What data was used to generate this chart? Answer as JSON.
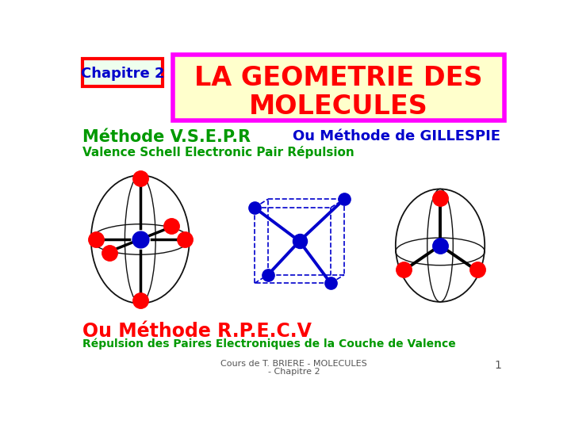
{
  "bg_color": "#ffffff",
  "chapitre_text": "Chapitre 2",
  "chapitre_bg": "#eeffee",
  "chapitre_border": "#ff0000",
  "chapitre_text_color": "#0000cc",
  "title_text_line1": "LA GEOMETRIE DES",
  "title_text_line2": "MOLECULES",
  "title_bg": "#ffffcc",
  "title_border": "#ff00ff",
  "title_text_color": "#ff0000",
  "methode_text": "Méthode V.S.E.P.R",
  "methode_color": "#009900",
  "gillespie_text": "Ou Méthode de GILLESPIE",
  "gillespie_color": "#0000cc",
  "valence_text": "Valence Schell Electronic Pair Répulsion",
  "valence_color": "#009900",
  "ou_methode_text": "Ou Méthode R.P.E.C.V",
  "ou_methode_color": "#ff0000",
  "repulsion_text": "Répulsion des Paires Electroniques de la Couche de Valence",
  "repulsion_color": "#009900",
  "footer_text": "Cours de T. BRIERE - MOLECULES\n- Chapitre 2",
  "footer_color": "#555555",
  "page_number": "1",
  "center_atom_color": "#0000cc",
  "outer_atom_color": "#ff0000",
  "bond_color": "#000000",
  "cube_color": "#0000cc",
  "ellipse_color": "#111111"
}
